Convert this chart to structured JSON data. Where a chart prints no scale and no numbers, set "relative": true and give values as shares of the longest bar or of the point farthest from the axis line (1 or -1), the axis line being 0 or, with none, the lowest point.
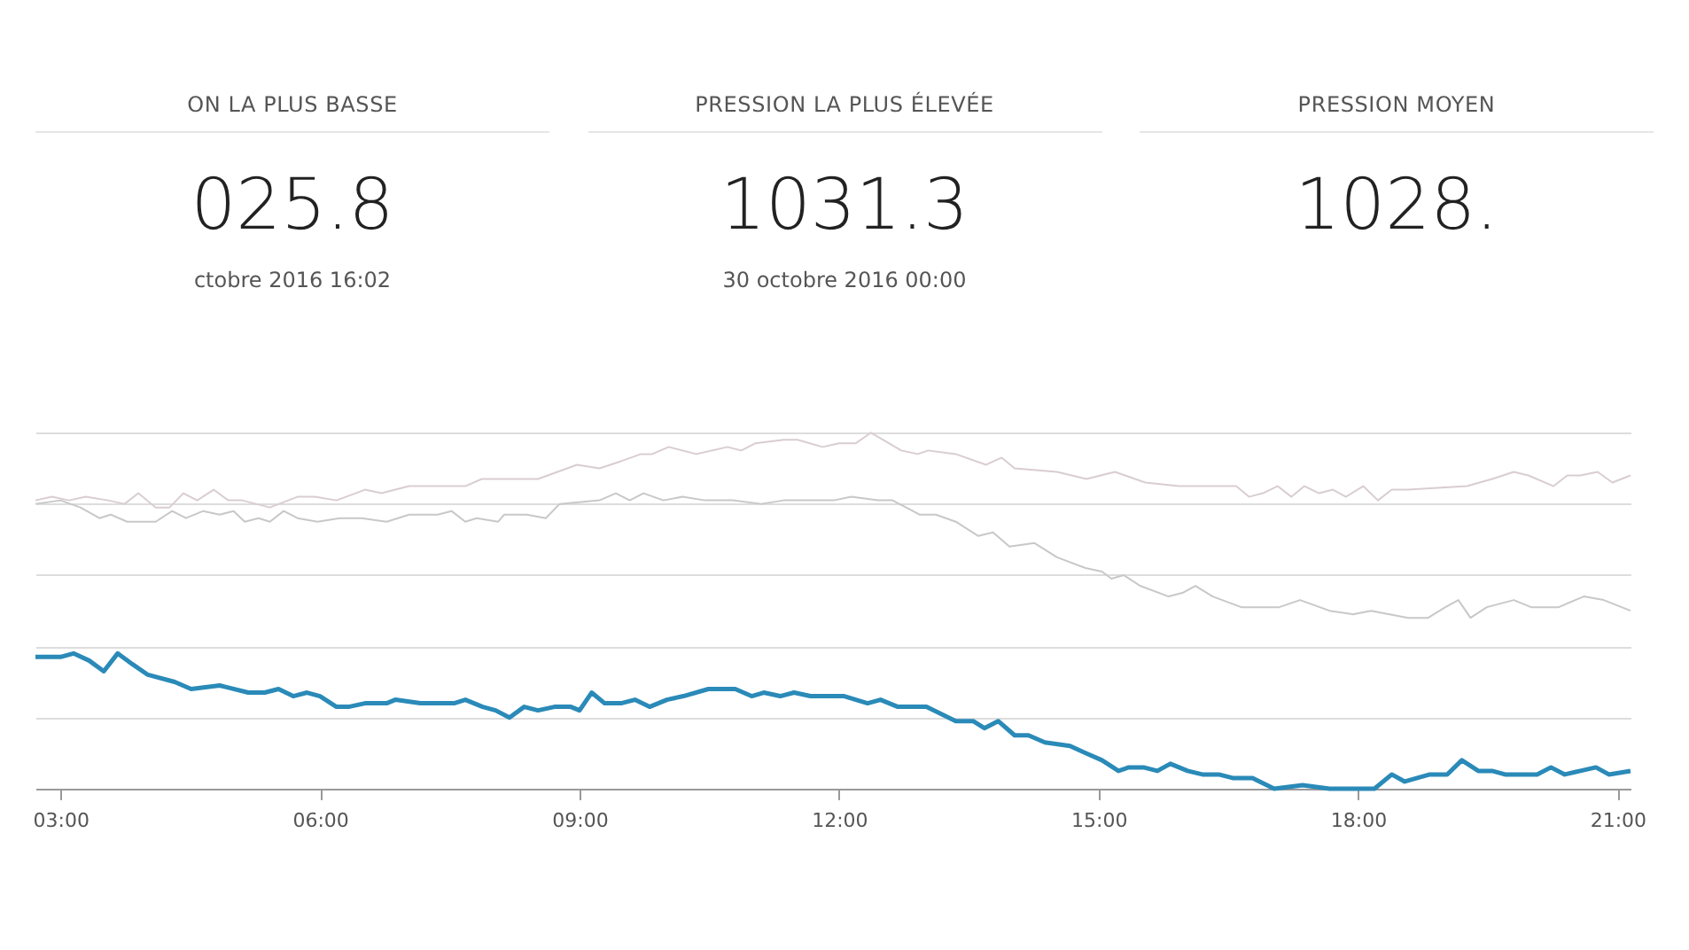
{
  "chart_data": [
    {
      "type": "other",
      "title": "ON LA PLUS BASSE",
      "annotations": [
        "025.8",
        "ctobre 2016 16:02"
      ]
    },
    {
      "type": "other",
      "title": "PRESSION LA PLUS ÉLEVÉE",
      "annotations": [
        "1031.3",
        "30 octobre 2016 00:00"
      ]
    },
    {
      "type": "other",
      "title": "PRESSION MOYEN",
      "annotations": [
        "1028."
      ]
    },
    {
      "type": "line",
      "relative": true,
      "grid": "y",
      "xlim": [
        2.71,
        21.15
      ],
      "xticks": [
        {
          "value": 3,
          "label": "03:00"
        },
        {
          "value": 6,
          "label": "06:00"
        },
        {
          "value": 9,
          "label": "09:00"
        },
        {
          "value": 12,
          "label": "12:00"
        },
        {
          "value": 15,
          "label": "15:00"
        },
        {
          "value": 18,
          "label": "18:00"
        },
        {
          "value": 21,
          "label": "21:00"
        }
      ],
      "series": [
        {
          "color": "#2a8ab8",
          "x": [
            2.71,
            3.0,
            3.15,
            3.33,
            3.5,
            3.66,
            3.83,
            4.01,
            4.32,
            4.51,
            4.84,
            5.17,
            5.36,
            5.52,
            5.69,
            5.85,
            6.0,
            6.19,
            6.33,
            6.52,
            6.77,
            6.87,
            7.16,
            7.55,
            7.68,
            7.88,
            8.03,
            8.19,
            8.36,
            8.52,
            8.71,
            8.9,
            9.0,
            9.14,
            9.29,
            9.48,
            9.64,
            9.81,
            10.01,
            10.2,
            10.49,
            10.8,
            10.99,
            11.13,
            11.32,
            11.48,
            11.67,
            11.81,
            12.06,
            12.33,
            12.48,
            12.68,
            13.01,
            13.35,
            13.55,
            13.68,
            13.84,
            14.03,
            14.19,
            14.38,
            14.67,
            14.85,
            15.04,
            15.23,
            15.35,
            15.52,
            15.68,
            15.83,
            16.03,
            16.2,
            16.39,
            16.55,
            16.78,
            17.03,
            17.36,
            17.67,
            17.9,
            18.0,
            18.19,
            18.39,
            18.54,
            18.83,
            19.03,
            19.2,
            19.39,
            19.55,
            19.7,
            20.07,
            20.23,
            20.39,
            20.57,
            20.75,
            20.9,
            21.15
          ],
          "values": [
            0.37,
            0.37,
            0.38,
            0.36,
            0.33,
            0.38,
            0.35,
            0.32,
            0.3,
            0.28,
            0.29,
            0.27,
            0.27,
            0.28,
            0.26,
            0.27,
            0.26,
            0.23,
            0.23,
            0.24,
            0.24,
            0.25,
            0.24,
            0.24,
            0.25,
            0.23,
            0.22,
            0.2,
            0.23,
            0.22,
            0.23,
            0.23,
            0.22,
            0.27,
            0.24,
            0.24,
            0.25,
            0.23,
            0.25,
            0.26,
            0.28,
            0.28,
            0.26,
            0.27,
            0.26,
            0.27,
            0.26,
            0.26,
            0.26,
            0.24,
            0.25,
            0.23,
            0.23,
            0.19,
            0.19,
            0.17,
            0.19,
            0.15,
            0.15,
            0.13,
            0.12,
            0.1,
            0.08,
            0.05,
            0.06,
            0.06,
            0.05,
            0.07,
            0.05,
            0.04,
            0.04,
            0.03,
            0.03,
            0,
            0.01,
            0,
            0,
            0,
            0,
            0.04,
            0.02,
            0.04,
            0.04,
            0.08,
            0.05,
            0.05,
            0.04,
            0.04,
            0.06,
            0.04,
            0.05,
            0.06,
            0.04,
            0.05
          ]
        },
        {
          "color": "#c8c8c8",
          "x": [
            2.71,
            3.0,
            3.23,
            3.45,
            3.58,
            3.77,
            4.1,
            4.29,
            4.45,
            4.65,
            4.84,
            5.0,
            5.13,
            5.29,
            5.42,
            5.58,
            5.74,
            5.97,
            6.23,
            6.48,
            6.77,
            7.03,
            7.36,
            7.52,
            7.68,
            7.81,
            8.06,
            8.13,
            8.39,
            8.61,
            8.77,
            9.23,
            9.42,
            9.58,
            9.74,
            9.97,
            10.19,
            10.45,
            10.77,
            11.1,
            11.36,
            11.68,
            11.81,
            11.94,
            12.14,
            12.45,
            12.62,
            12.93,
            13.12,
            13.35,
            13.61,
            13.78,
            13.97,
            14.26,
            14.52,
            14.85,
            15.04,
            15.15,
            15.29,
            15.48,
            15.81,
            15.97,
            16.12,
            16.32,
            16.65,
            17.09,
            17.33,
            17.67,
            17.94,
            18.15,
            18.58,
            18.81,
            19.01,
            19.16,
            19.3,
            19.49,
            19.8,
            20.0,
            20.32,
            20.61,
            20.84,
            21.15
          ],
          "values": [
            0.8,
            0.81,
            0.79,
            0.76,
            0.77,
            0.75,
            0.75,
            0.78,
            0.76,
            0.78,
            0.77,
            0.78,
            0.75,
            0.76,
            0.75,
            0.78,
            0.76,
            0.75,
            0.76,
            0.76,
            0.75,
            0.77,
            0.77,
            0.78,
            0.75,
            0.76,
            0.75,
            0.77,
            0.77,
            0.76,
            0.8,
            0.81,
            0.83,
            0.81,
            0.83,
            0.81,
            0.82,
            0.81,
            0.81,
            0.8,
            0.81,
            0.81,
            0.81,
            0.81,
            0.82,
            0.81,
            0.81,
            0.77,
            0.77,
            0.75,
            0.71,
            0.72,
            0.68,
            0.69,
            0.65,
            0.62,
            0.61,
            0.59,
            0.6,
            0.57,
            0.54,
            0.55,
            0.57,
            0.54,
            0.51,
            0.51,
            0.53,
            0.5,
            0.49,
            0.5,
            0.48,
            0.48,
            0.51,
            0.53,
            0.48,
            0.51,
            0.53,
            0.51,
            0.51,
            0.54,
            0.53,
            0.5
          ]
        },
        {
          "color": "#d9cdd2",
          "x": [
            2.71,
            2.9,
            3.1,
            3.29,
            3.55,
            3.74,
            3.9,
            4.1,
            4.26,
            4.42,
            4.58,
            4.77,
            4.94,
            5.1,
            5.42,
            5.74,
            5.94,
            6.19,
            6.52,
            6.71,
            7.03,
            7.68,
            7.87,
            8.52,
            8.97,
            9.23,
            9.48,
            9.71,
            9.84,
            10.03,
            10.35,
            10.71,
            10.87,
            11.03,
            11.36,
            11.52,
            11.81,
            12.0,
            12.19,
            12.37,
            12.72,
            12.91,
            13.03,
            13.35,
            13.7,
            13.88,
            14.03,
            14.52,
            14.86,
            15.19,
            15.54,
            15.93,
            16.26,
            16.59,
            16.74,
            16.9,
            17.07,
            17.23,
            17.38,
            17.55,
            17.71,
            17.86,
            18.06,
            18.23,
            18.39,
            18.58,
            19.26,
            19.55,
            19.8,
            19.97,
            20.26,
            20.42,
            20.57,
            20.77,
            20.94,
            21.15
          ],
          "values": [
            0.81,
            0.82,
            0.81,
            0.82,
            0.81,
            0.8,
            0.83,
            0.79,
            0.79,
            0.83,
            0.81,
            0.84,
            0.81,
            0.81,
            0.79,
            0.82,
            0.82,
            0.81,
            0.84,
            0.83,
            0.85,
            0.85,
            0.87,
            0.87,
            0.91,
            0.9,
            0.92,
            0.94,
            0.94,
            0.96,
            0.94,
            0.96,
            0.95,
            0.97,
            0.98,
            0.98,
            0.96,
            0.97,
            0.97,
            1.0,
            0.95,
            0.94,
            0.95,
            0.94,
            0.91,
            0.93,
            0.9,
            0.89,
            0.87,
            0.89,
            0.86,
            0.85,
            0.85,
            0.85,
            0.82,
            0.83,
            0.85,
            0.82,
            0.85,
            0.83,
            0.84,
            0.82,
            0.85,
            0.81,
            0.84,
            0.84,
            0.85,
            0.87,
            0.89,
            0.88,
            0.85,
            0.88,
            0.88,
            0.89,
            0.86,
            0.88
          ]
        }
      ]
    }
  ]
}
